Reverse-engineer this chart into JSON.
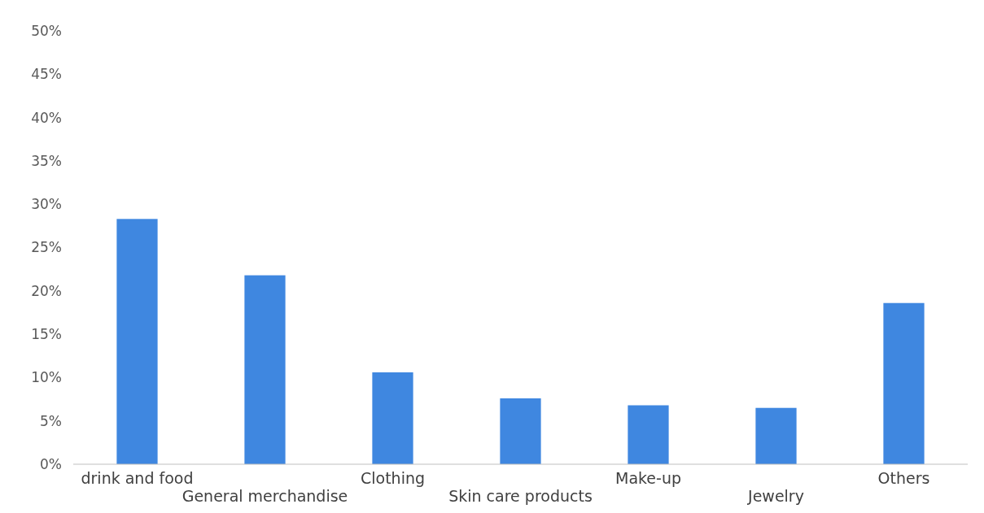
{
  "chart_data": {
    "type": "bar",
    "categories": [
      "drink and food",
      "General merchandise",
      "Clothing",
      "Skin care products",
      "Make-up",
      "Jewelry",
      "Others"
    ],
    "values": [
      28.3,
      21.8,
      10.6,
      7.6,
      6.8,
      6.5,
      18.6
    ],
    "color": "#3f87e0",
    "ylim": [
      0,
      50
    ],
    "yticks": [
      {
        "value": 0,
        "label": "0%"
      },
      {
        "value": 5,
        "label": "5%"
      },
      {
        "value": 10,
        "label": "10%"
      },
      {
        "value": 15,
        "label": "15%"
      },
      {
        "value": 20,
        "label": "20%"
      },
      {
        "value": 25,
        "label": "25%"
      },
      {
        "value": 30,
        "label": "30%"
      },
      {
        "value": 35,
        "label": "35%"
      },
      {
        "value": 40,
        "label": "40%"
      },
      {
        "value": 45,
        "label": "45%"
      },
      {
        "value": 50,
        "label": "50%"
      }
    ],
    "grid": false
  }
}
